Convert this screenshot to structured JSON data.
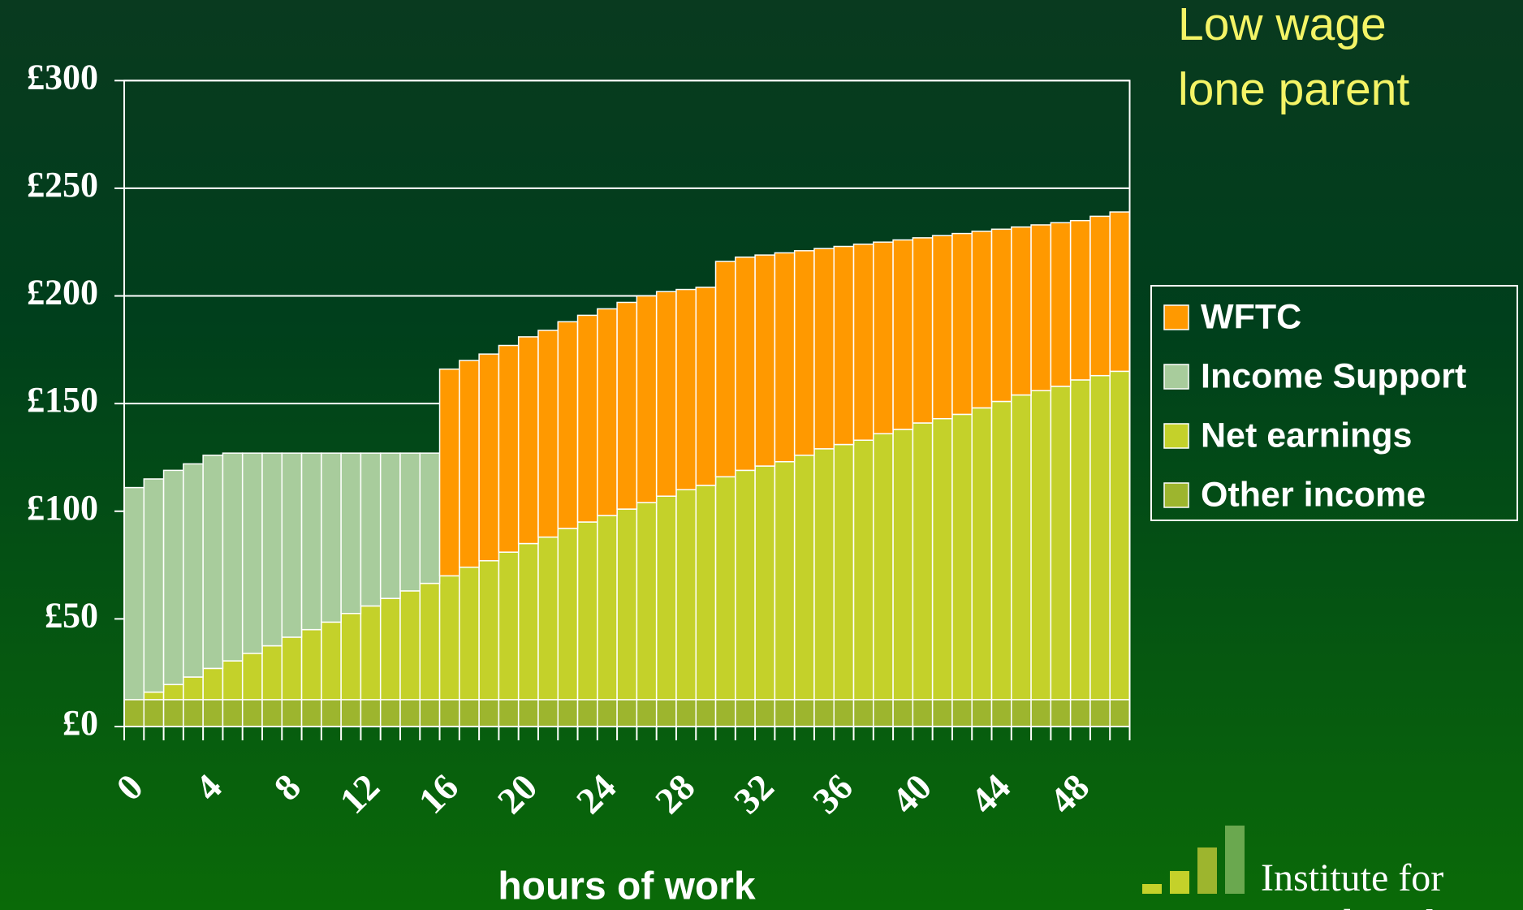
{
  "chart_data": {
    "type": "stacked_bar",
    "title": [
      "Low wage",
      "lone parent"
    ],
    "x_label": "hours of work",
    "logo": [
      "Institute for",
      "Fiscal Studies"
    ],
    "categories": [
      0,
      null,
      null,
      null,
      4,
      null,
      null,
      null,
      8,
      null,
      null,
      null,
      12,
      null,
      null,
      null,
      16,
      null,
      null,
      null,
      20,
      null,
      null,
      null,
      24,
      null,
      null,
      null,
      28,
      null,
      null,
      null,
      32,
      null,
      null,
      null,
      36,
      null,
      null,
      null,
      40,
      null,
      null,
      null,
      44,
      null,
      null,
      null,
      48,
      null,
      null
    ],
    "series": [
      {
        "name": "Other income",
        "color": "#9db52e",
        "values": [
          12.5,
          12.5,
          12.5,
          12.5,
          12.5,
          12.5,
          12.5,
          12.5,
          12.5,
          12.5,
          12.5,
          12.5,
          12.5,
          12.5,
          12.5,
          12.5,
          12.5,
          12.5,
          12.5,
          12.5,
          12.5,
          12.5,
          12.5,
          12.5,
          12.5,
          12.5,
          12.5,
          12.5,
          12.5,
          12.5,
          12.5,
          12.5,
          12.5,
          12.5,
          12.5,
          12.5,
          12.5,
          12.5,
          12.5,
          12.5,
          12.5,
          12.5,
          12.5,
          12.5,
          12.5,
          12.5,
          12.5,
          12.5,
          12.5,
          12.5,
          12.5
        ]
      },
      {
        "name": "Net earnings",
        "color": "#c4d12a",
        "values": [
          0,
          3.5,
          7,
          10.5,
          14.5,
          18,
          21.5,
          25,
          29,
          32.5,
          36,
          40,
          43.5,
          47,
          50.5,
          54,
          57.5,
          61.5,
          64.5,
          68.5,
          72.5,
          75.5,
          79.5,
          82.5,
          85.5,
          88.5,
          91.5,
          94.5,
          97.5,
          99.5,
          103.5,
          106.5,
          108.5,
          110.5,
          113.5,
          116.5,
          118.5,
          120.5,
          123.5,
          125.5,
          128.5,
          130.5,
          132.5,
          135.5,
          138.5,
          141.5,
          143.5,
          145.5,
          148.5,
          150.5,
          152.5
        ]
      },
      {
        "name": "Income Support",
        "color": "#a8cc9c",
        "values": [
          98.5,
          99,
          99.5,
          99,
          99,
          96.5,
          93,
          89.5,
          85.5,
          82,
          78.5,
          74.5,
          71,
          67.5,
          64,
          60.5,
          0,
          0,
          0,
          0,
          0,
          0,
          0,
          0,
          0,
          0,
          0,
          0,
          0,
          0,
          0,
          0,
          0,
          0,
          0,
          0,
          0,
          0,
          0,
          0,
          0,
          0,
          0,
          0,
          0,
          0,
          0,
          0,
          0,
          0,
          0
        ]
      },
      {
        "name": "WFTC",
        "color": "#ff9900",
        "values": [
          0,
          0,
          0,
          0,
          0,
          0,
          0,
          0,
          0,
          0,
          0,
          0,
          0,
          0,
          0,
          0,
          96,
          96,
          96,
          96,
          96,
          96,
          96,
          96,
          96,
          96,
          96,
          95,
          93,
          92,
          100,
          99,
          98,
          97,
          95,
          93,
          92,
          91,
          89,
          88,
          86,
          85,
          84,
          82,
          80,
          78,
          77,
          76,
          74,
          74,
          74
        ]
      }
    ],
    "ylim": [
      0,
      300
    ],
    "yticks": [
      {
        "value": 0,
        "label": "£0"
      },
      {
        "value": 50,
        "label": "£50"
      },
      {
        "value": 100,
        "label": "£100"
      },
      {
        "value": 150,
        "label": "£150"
      },
      {
        "value": 200,
        "label": "£200"
      },
      {
        "value": 250,
        "label": "£250"
      },
      {
        "value": 300,
        "label": "£300"
      }
    ],
    "grid": true,
    "legend": "right"
  }
}
